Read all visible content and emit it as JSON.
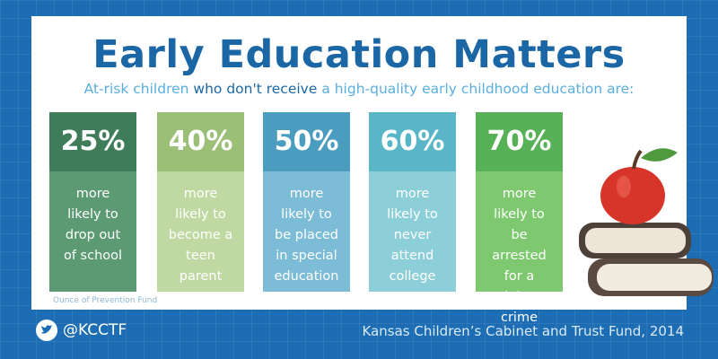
{
  "header": {
    "title": "Early Education Matters",
    "subtitle": [
      "At-risk children",
      "who don't receive",
      "a high-quality early childhood education are:"
    ]
  },
  "cards": [
    {
      "stat": "25%",
      "text": "more likely to drop out of school"
    },
    {
      "stat": "40%",
      "text": "more likely to become a teen parent"
    },
    {
      "stat": "50%",
      "text": "more likely to be placed in special education"
    },
    {
      "stat": "60%",
      "text": "more likely to never attend college"
    },
    {
      "stat": "70%",
      "text": "more likely to be arrested for a violent crime"
    }
  ],
  "source": "Ounce of Prevention Fund",
  "footer": {
    "handle": "@KCCTF",
    "credit": "Kansas Children’s Cabinet and Trust Fund, 2014"
  }
}
